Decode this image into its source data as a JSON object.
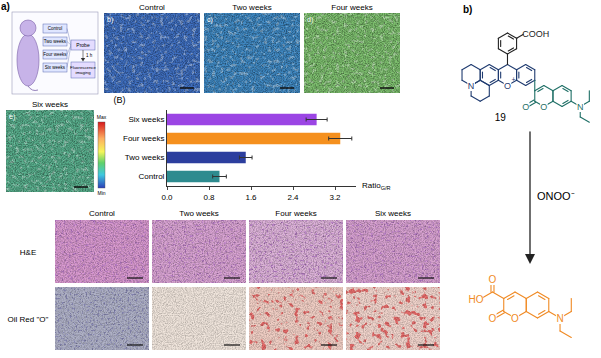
{
  "panel_a": {
    "label": "a)",
    "schematic": {
      "groups": [
        "Control",
        "Two weeks",
        "Four weeks",
        "Six weeks"
      ],
      "steps": [
        "Probe",
        "1 h",
        "Fluorescence imaging"
      ]
    },
    "fluorescence": [
      {
        "label": "b)",
        "title": "Control",
        "color": "#3f6fc0"
      },
      {
        "label": "c)",
        "title": "Two weeks",
        "color": "#3f88c2"
      },
      {
        "label": "d)",
        "title": "Four weeks",
        "color": "#7dbf6e"
      },
      {
        "label": "e)",
        "title": "Six weeks",
        "color": "#58ae8c"
      }
    ],
    "colorbar": {
      "max": "Max",
      "min": "Min"
    },
    "histology": {
      "columns": [
        "Control",
        "Two weeks",
        "Four weeks",
        "Six weeks"
      ],
      "rows": [
        {
          "label": "H&E",
          "colors": [
            "#d99ad0",
            "#d9a4d3",
            "#ddb3d9",
            "#d8a2d1"
          ]
        },
        {
          "label": "Oil Red \"O\"",
          "colors": [
            "#aeb0c6",
            "#efe4db",
            "#efcdc3",
            "#f0d3cb"
          ]
        }
      ]
    }
  },
  "chart_data": {
    "type": "bar",
    "orientation": "horizontal",
    "title": "(B)",
    "categories": [
      "Control",
      "Two weeks",
      "Four weeks",
      "Six weeks"
    ],
    "values": [
      1.0,
      1.5,
      3.3,
      2.85
    ],
    "errors": [
      0.13,
      0.12,
      0.22,
      0.2
    ],
    "colors": [
      "#2e8b8f",
      "#2c3e9e",
      "#f5901e",
      "#9b45e4"
    ],
    "xlabel": "Ratio",
    "xlabel_subscript": "G/R",
    "xlim": [
      0,
      3.6
    ],
    "xticks": [
      {
        "value": 0,
        "label": "0.0"
      },
      0.8,
      1.6,
      2.4,
      3.2
    ],
    "grid": false
  },
  "panel_b": {
    "label": "b)",
    "reagent": "ONOO⁻",
    "probe": {
      "number": "19",
      "colors": {
        "xanthene": "#1f3b70",
        "benzoic": "#222222",
        "coumarin": "#1f6f66"
      },
      "atoms": {
        "carboxyl": "COOH",
        "ring_oxygen": "O",
        "charge": "+",
        "julolidine_n": "N",
        "lactone_o": "O",
        "carbonyl_o": "O",
        "amine_n": "N"
      }
    },
    "product": {
      "color": "#f08a24",
      "atoms": {
        "acid_carbonyl_o": "O",
        "hydroxyl": "HO",
        "lactone_o": "O",
        "carbonyl_o": "O",
        "amine_n": "N"
      }
    }
  }
}
